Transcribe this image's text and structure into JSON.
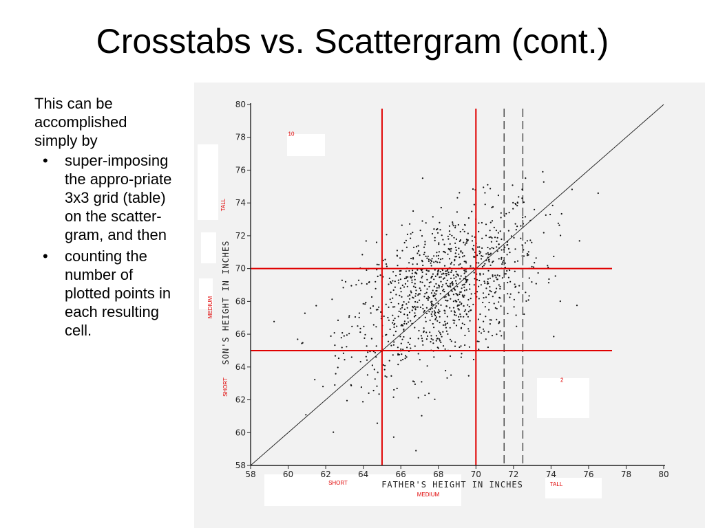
{
  "slide": {
    "title": "Crosstabs vs. Scattergram (cont.)",
    "intro": "This can be accomplished simply by",
    "bullets": [
      "super-imposing the appro-priate 3x3 grid (table) on the scatter-gram, and then",
      "counting the number of plotted points in each resulting cell."
    ]
  },
  "chart_data": {
    "type": "scatter",
    "xlabel": "FATHER'S HEIGHT IN INCHES",
    "ylabel": "SON'S HEIGHT IN INCHES",
    "xlim": [
      58,
      80
    ],
    "ylim": [
      58,
      80
    ],
    "x_ticks": [
      "58",
      "60",
      "62",
      "64",
      "66",
      "68",
      "70",
      "72",
      "74",
      "76",
      "78",
      "80"
    ],
    "y_ticks": [
      "58",
      "60",
      "62",
      "64",
      "66",
      "68",
      "70",
      "72",
      "74",
      "76",
      "78",
      "80"
    ],
    "reference_line": {
      "type": "diagonal",
      "from": [
        58,
        58
      ],
      "to": [
        80,
        80
      ]
    },
    "grid_lines": {
      "x": [
        65,
        70
      ],
      "y": [
        65,
        70
      ],
      "color": "#e00000"
    },
    "dashed_lines": {
      "x": [
        71.5,
        72.5
      ]
    },
    "category_labels": {
      "x": [
        "SHORT",
        "MEDIUM",
        "TALL"
      ],
      "y": [
        "SHORT",
        "MEDIUM",
        "TALL"
      ]
    },
    "cell_counts": [
      {
        "label": "10",
        "x": 60,
        "y": 78.1
      },
      {
        "label": "2",
        "x": 74.5,
        "y": 63.1
      }
    ],
    "point_cloud": {
      "approx_points": 1078,
      "center": [
        68.3,
        68.7
      ],
      "spread": [
        2.6,
        2.6
      ],
      "correlation": 0.5
    },
    "legend": "none",
    "grid": false
  }
}
